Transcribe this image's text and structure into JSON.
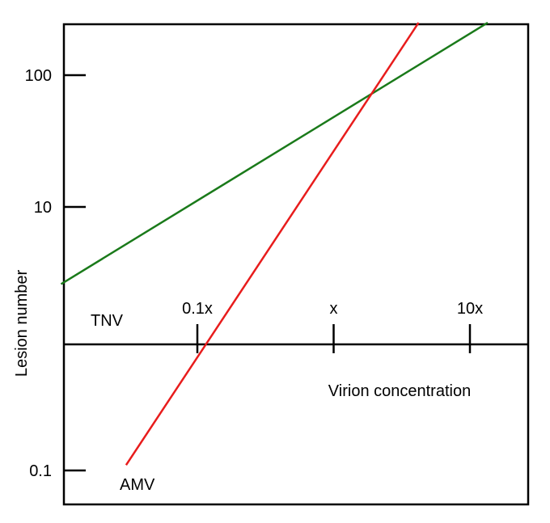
{
  "chart_data": {
    "type": "line",
    "ylabel": "Lesion number",
    "xlabel": "Virion concentration",
    "x_scale": "log",
    "y_scale": "log",
    "xlim": [
      0.01,
      30
    ],
    "ylim": [
      0.066,
      250
    ],
    "x_ticks": [
      {
        "value": 0.1,
        "label": "0.1x"
      },
      {
        "value": 1,
        "label": "x"
      },
      {
        "value": 10,
        "label": "10x"
      }
    ],
    "y_ticks": [
      {
        "value": 0.1,
        "label": "0.1"
      },
      {
        "value": 10,
        "label": "10"
      },
      {
        "value": 100,
        "label": "100"
      }
    ],
    "x_axis_crosses_y_at": 1,
    "grid": false,
    "series": [
      {
        "name": "TNV",
        "color": "#1a7a1a",
        "x": [
          0.01,
          13.5
        ],
        "y": [
          2.6,
          250
        ]
      },
      {
        "name": "AMV",
        "color": "#e81c1c",
        "x": [
          0.03,
          4.2
        ],
        "y": [
          0.11,
          250
        ]
      }
    ]
  }
}
